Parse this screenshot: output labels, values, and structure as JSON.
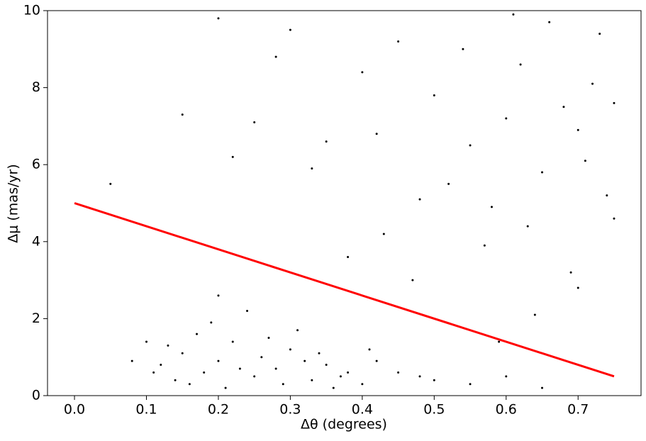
{
  "chart_data": {
    "type": "scatter",
    "xlabel": "Δθ (degrees)",
    "ylabel": "Δμ (mas/yr)",
    "xlim": [
      -0.0375,
      0.7875
    ],
    "xticks": [
      {
        "value": 0,
        "label": "0.0"
      },
      0.1,
      0.2,
      0.3,
      0.4,
      0.5,
      0.6,
      0.7
    ],
    "ylim": [
      0,
      10
    ],
    "yticks": [
      0,
      2,
      4,
      6,
      8,
      10
    ],
    "series": [
      {
        "color": "#000000",
        "x": [
          0.12,
          0.15,
          0.18,
          0.2,
          0.22,
          0.25,
          0.28,
          0.3,
          0.33,
          0.35,
          0.38,
          0.4,
          0.14,
          0.17,
          0.19,
          0.21,
          0.24,
          0.26,
          0.29,
          0.31,
          0.34,
          0.37,
          0.42,
          0.45,
          0.5,
          0.55,
          0.6,
          0.65,
          0.13,
          0.16,
          0.2,
          0.23,
          0.27,
          0.32,
          0.36,
          0.41,
          0.48,
          0.08,
          0.1,
          0.11,
          0.55,
          0.6,
          0.65,
          0.7,
          0.72,
          0.74,
          0.58,
          0.62,
          0.68,
          0.71,
          0.5,
          0.45,
          0.4,
          0.35,
          0.3,
          0.25,
          0.52,
          0.57,
          0.63,
          0.69,
          0.73,
          0.66,
          0.61,
          0.54,
          0.48,
          0.43,
          0.38,
          0.33,
          0.28,
          0.22,
          0.75,
          0.75,
          0.7,
          0.64,
          0.59,
          0.47,
          0.42,
          0.2,
          0.15,
          0.05
        ],
        "values": [
          0.8,
          1.1,
          0.6,
          0.9,
          1.4,
          0.5,
          0.7,
          1.2,
          0.4,
          0.8,
          0.6,
          0.3,
          0.4,
          1.6,
          1.9,
          0.2,
          2.2,
          1.0,
          0.3,
          1.7,
          1.1,
          0.5,
          0.9,
          0.6,
          0.4,
          0.3,
          0.5,
          0.2,
          1.3,
          0.3,
          2.6,
          0.7,
          1.5,
          0.9,
          0.2,
          1.2,
          0.5,
          0.9,
          1.4,
          0.6,
          6.5,
          7.2,
          5.8,
          6.9,
          8.1,
          5.2,
          4.9,
          8.6,
          7.5,
          6.1,
          7.8,
          9.2,
          8.4,
          6.6,
          9.5,
          7.1,
          5.5,
          3.9,
          4.4,
          3.2,
          9.4,
          9.7,
          9.9,
          9.0,
          5.1,
          4.2,
          3.6,
          5.9,
          8.8,
          6.2,
          7.6,
          4.6,
          2.8,
          2.1,
          1.4,
          3.0,
          6.8,
          9.8,
          7.3,
          5.5
        ]
      },
      {
        "type": "line",
        "color": "#ff0000",
        "x": [
          0,
          0.75
        ],
        "values": [
          5,
          0.5
        ]
      }
    ]
  }
}
